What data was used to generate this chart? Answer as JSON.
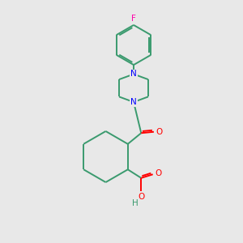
{
  "background_color": "#e8e8e8",
  "bond_color": "#3a9a6e",
  "N_color": "#0000ff",
  "O_color": "#ff0000",
  "F_color": "#ff00aa",
  "H_color": "#3a9a6e",
  "line_width": 1.4,
  "figsize": [
    3.0,
    3.0
  ],
  "dpi": 100,
  "xlim": [
    0,
    10
  ],
  "ylim": [
    0,
    10
  ]
}
